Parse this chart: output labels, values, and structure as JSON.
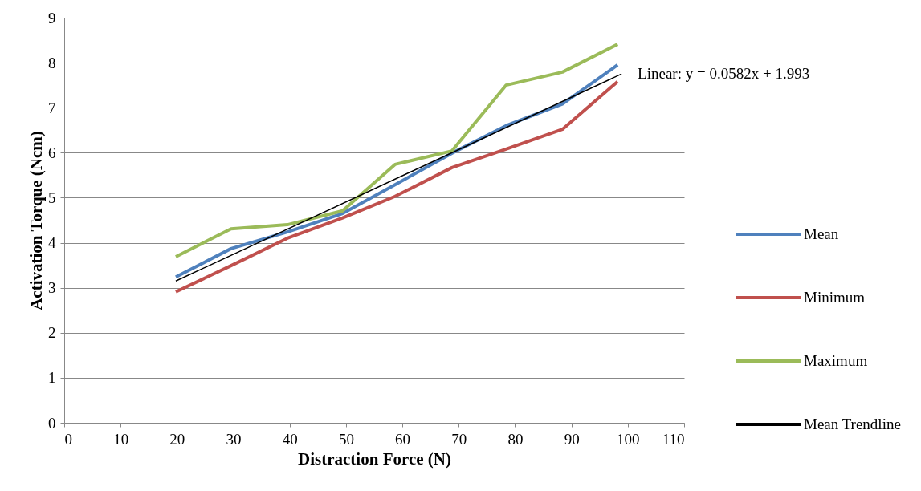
{
  "chart_data": {
    "type": "line",
    "xlabel": "Distraction Force (N)",
    "ylabel": "Activation Torque (Ncm)",
    "x": [
      19.8,
      29.6,
      39.6,
      49.4,
      58.7,
      68.8,
      78.4,
      88.4,
      98.2
    ],
    "series": [
      {
        "name": "Mean",
        "color": "#4f81bd",
        "values": [
          3.24,
          3.87,
          4.24,
          4.65,
          5.29,
          5.99,
          6.6,
          7.08,
          7.95
        ]
      },
      {
        "name": "Minimum",
        "color": "#c0504d",
        "values": [
          2.91,
          3.49,
          4.1,
          4.55,
          5.03,
          5.67,
          6.08,
          6.52,
          7.58
        ]
      },
      {
        "name": "Maximum",
        "color": "#9bbb59",
        "values": [
          3.69,
          4.31,
          4.4,
          4.71,
          5.74,
          6.04,
          7.5,
          7.79,
          8.41
        ]
      },
      {
        "name": "Mean Trendline",
        "color": "#000000",
        "type": "line",
        "x": [
          19.8,
          98.9
        ],
        "values": [
          3.15,
          7.75
        ]
      }
    ],
    "annotations": [
      {
        "text": "Linear: y = 0.0582x + 1.993",
        "x": 98.9,
        "y": 7.75
      }
    ],
    "xlim": [
      0,
      110
    ],
    "xticks": [
      0,
      10,
      20,
      30,
      40,
      50,
      60,
      70,
      80,
      90,
      100,
      110
    ],
    "ylim": [
      0,
      9
    ],
    "yticks": [
      0,
      1,
      2,
      3,
      4,
      5,
      6,
      7,
      8,
      9
    ],
    "grid": "y",
    "legend": "right",
    "marker": "none",
    "line_style": "solid"
  }
}
